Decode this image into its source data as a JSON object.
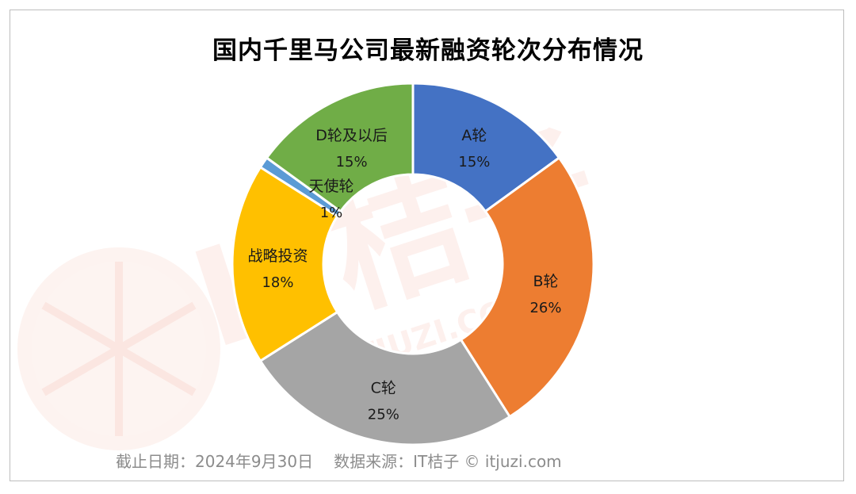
{
  "chart_data": {
    "type": "pie",
    "variant": "donut",
    "title": "国内千里马公司最新融资轮次分布情况",
    "series": [
      {
        "categories": [
          "A轮",
          "B轮",
          "C轮",
          "战略投资",
          "天使轮",
          "D轮及以后"
        ],
        "values": [
          15,
          26,
          25,
          18,
          1,
          15
        ],
        "value_labels": [
          "15%",
          "26%",
          "25%",
          "18%",
          "1%",
          "15%"
        ],
        "colors": [
          "#4472C4",
          "#ED7D31",
          "#A5A5A5",
          "#FFC000",
          "#5B9BD5",
          "#70AD47"
        ]
      }
    ],
    "start_angle": "12 o'clock",
    "direction": "clockwise",
    "legend": "none"
  },
  "footer": {
    "date_text": "截止日期：2024年9月30日",
    "source_text": "数据来源：IT桔子 © itjuzi.com"
  },
  "watermark": {
    "brand_text": "IT桔子",
    "url_text": "ITJUZI.COM"
  }
}
